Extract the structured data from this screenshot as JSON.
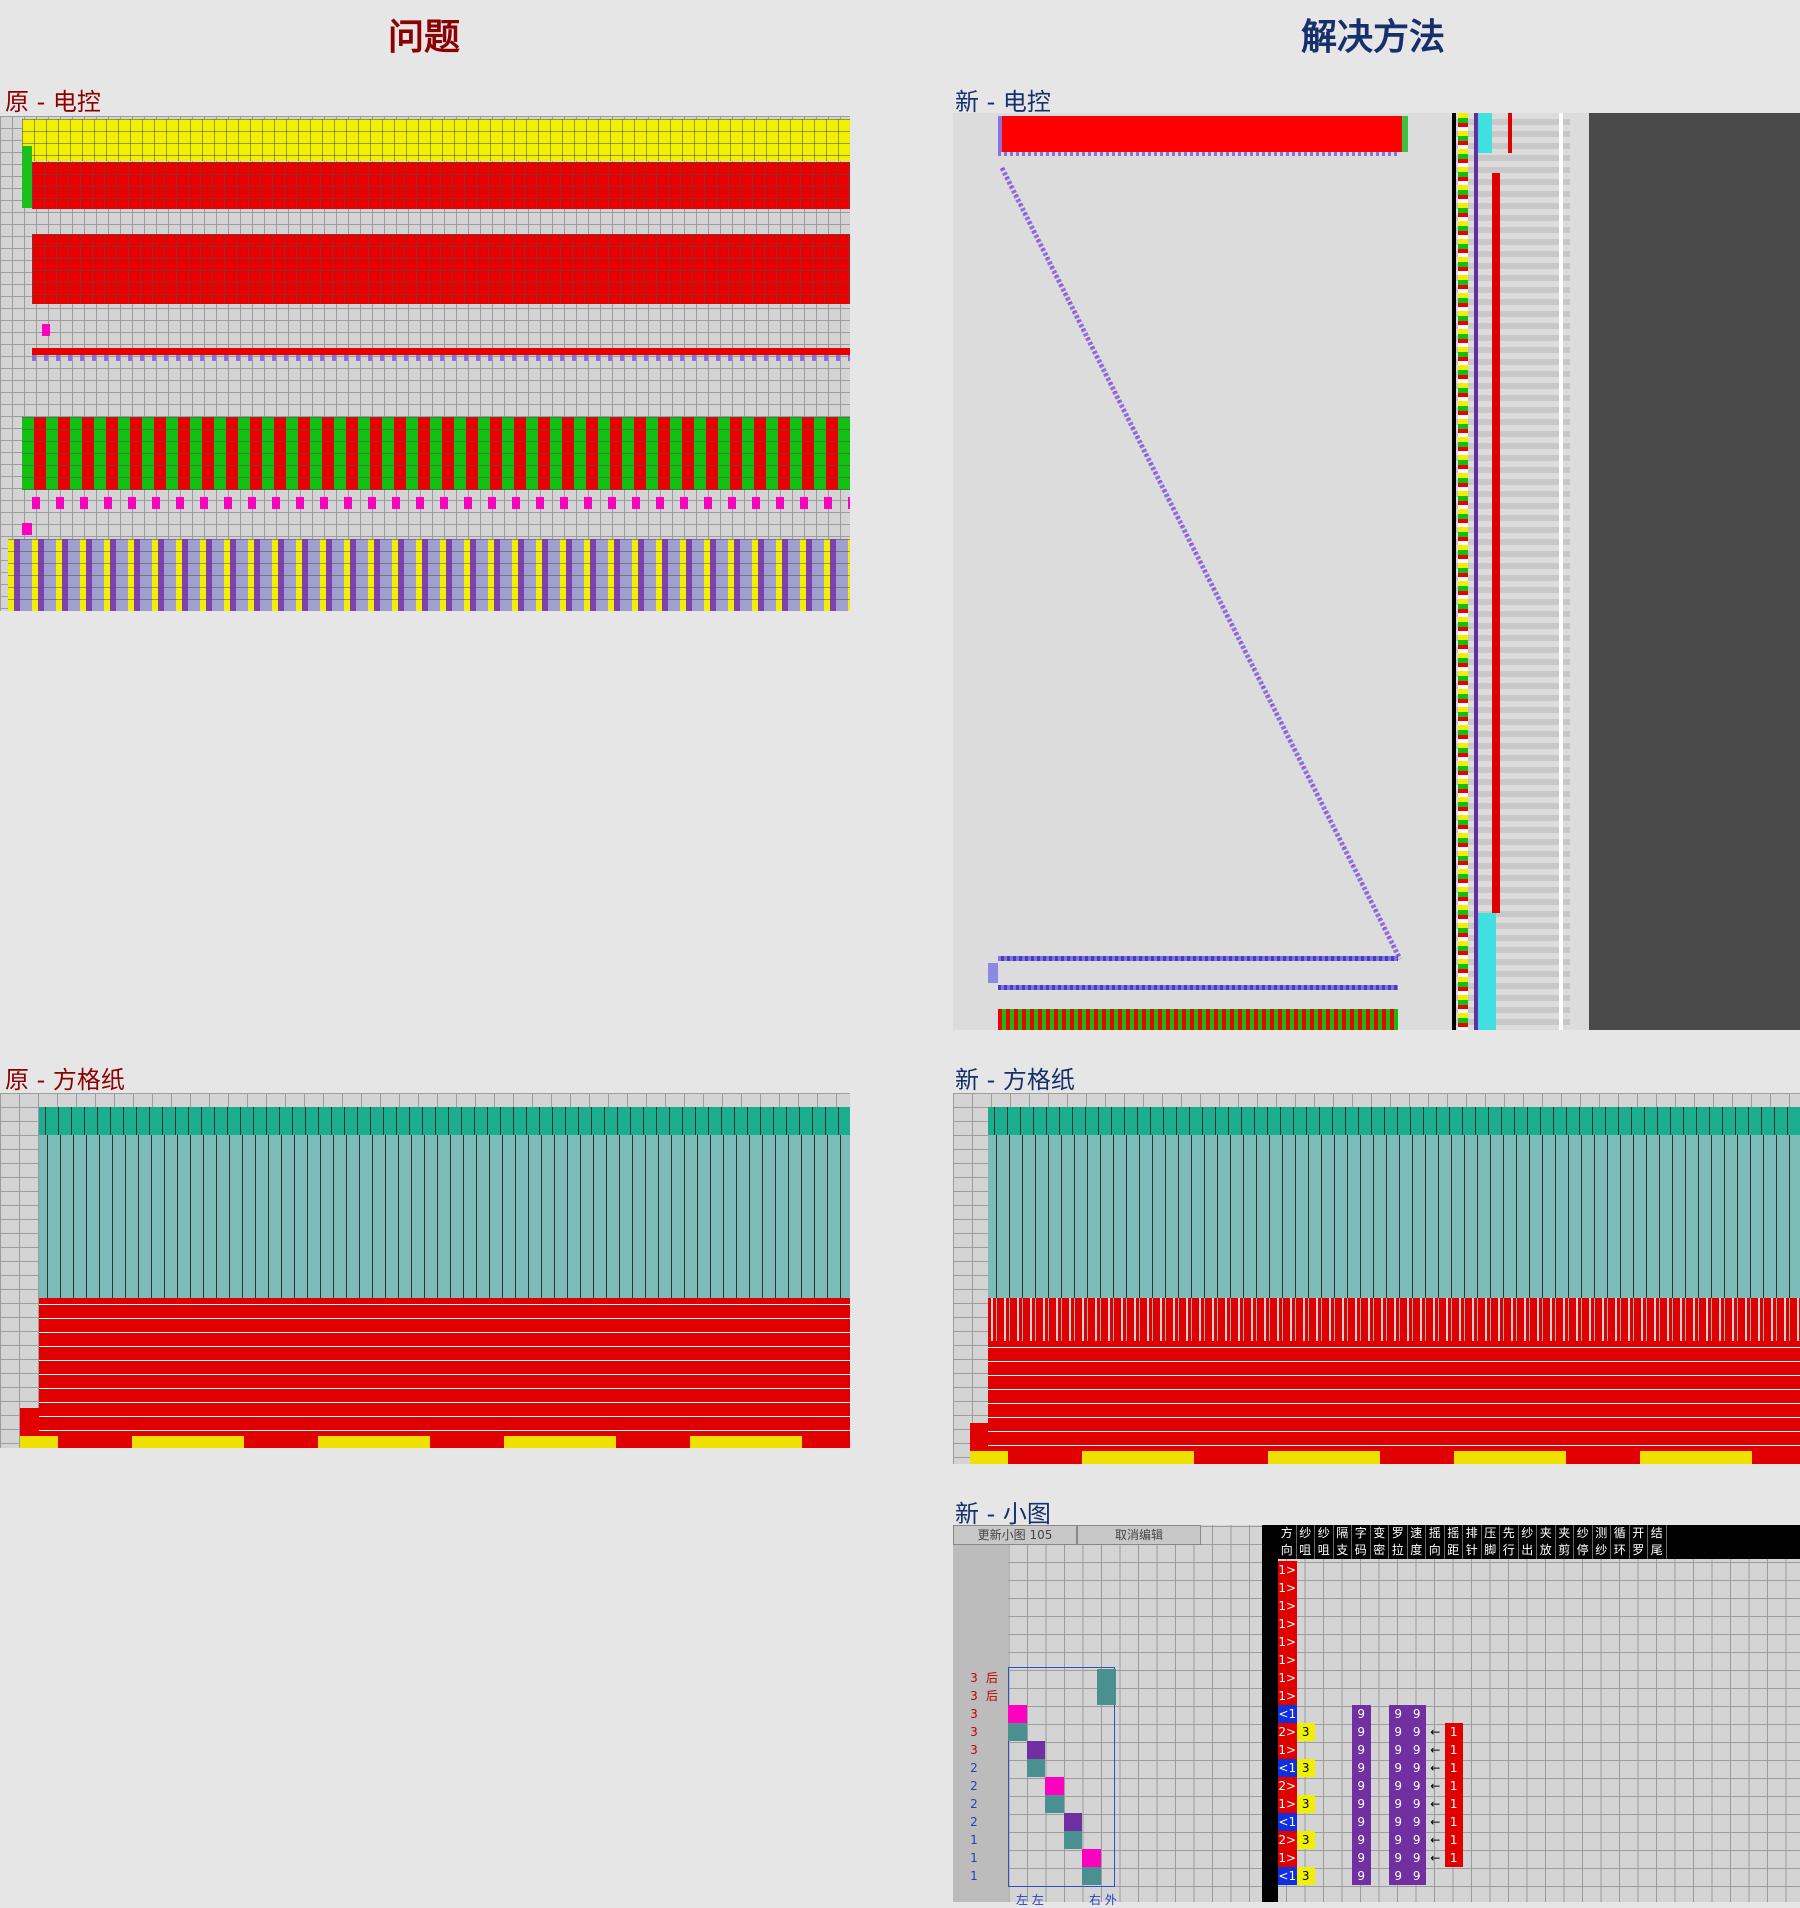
{
  "header": {
    "problem": "问题",
    "solution": "解决方法"
  },
  "panels": {
    "old_control": "原 - 电控",
    "new_control": "新 - 电控",
    "old_grid": "原 - 方格纸",
    "new_grid": "新 - 方格纸",
    "new_small": "新 - 小图"
  },
  "small_map": {
    "buttons": [
      "更新小图 105",
      "取消编辑"
    ],
    "header_top": [
      "方",
      "纱",
      "纱",
      "隔",
      "字",
      "变",
      "罗",
      "速",
      "摇",
      "摇",
      "排",
      "压",
      "先",
      "纱",
      "夹",
      "夹",
      "纱",
      "测",
      "循",
      "开",
      "结"
    ],
    "header_bottom": [
      "向",
      "咀",
      "咀",
      "支",
      "码",
      "密",
      "拉",
      "度",
      "向",
      "距",
      "针",
      "脚",
      "行",
      "出",
      "放",
      "剪",
      "停",
      "纱",
      "环",
      "罗",
      "尾"
    ],
    "rows": [
      {
        "dir": "1>"
      },
      {
        "dir": "1>"
      },
      {
        "dir": "1>"
      },
      {
        "dir": "1>"
      },
      {
        "dir": "1>"
      },
      {
        "dir": "1>"
      },
      {
        "dir": "1>"
      },
      {
        "dir": "1>"
      },
      {
        "dir": "<1",
        "stitch": "9",
        "density": "9",
        "speed": "9"
      },
      {
        "dir": "2>",
        "yarn": "3",
        "stitch": "9",
        "density": "9",
        "speed": "9",
        "arrow": "←",
        "swing": "1"
      },
      {
        "dir": "1>",
        "stitch": "9",
        "density": "9",
        "speed": "9",
        "arrow": "←",
        "swing": "1"
      },
      {
        "dir": "<1",
        "yarn": "3",
        "stitch": "9",
        "density": "9",
        "speed": "9",
        "arrow": "←",
        "swing": "1"
      },
      {
        "dir": "2>",
        "stitch": "9",
        "density": "9",
        "speed": "9",
        "arrow": "←",
        "swing": "1"
      },
      {
        "dir": "1>",
        "yarn": "3",
        "stitch": "9",
        "density": "9",
        "speed": "9",
        "arrow": "←",
        "swing": "1"
      },
      {
        "dir": "<1",
        "stitch": "9",
        "density": "9",
        "speed": "9",
        "arrow": "←",
        "swing": "1"
      },
      {
        "dir": "2>",
        "yarn": "3",
        "stitch": "9",
        "density": "9",
        "speed": "9",
        "arrow": "←",
        "swing": "1"
      },
      {
        "dir": "1>",
        "stitch": "9",
        "density": "9",
        "speed": "9",
        "arrow": "←",
        "swing": "1"
      },
      {
        "dir": "<1",
        "yarn": "3",
        "stitch": "9",
        "density": "9",
        "speed": "9"
      }
    ],
    "left_rows": [
      {
        "num": "3",
        "side": "后",
        "color": "#c00000"
      },
      {
        "num": "3",
        "side": "后",
        "color": "#c00000"
      },
      {
        "num": "3",
        "color": "#c00000"
      },
      {
        "num": "3",
        "color": "#c00000"
      },
      {
        "num": "3",
        "color": "#c00000"
      },
      {
        "num": "2",
        "color": "#2040c0"
      },
      {
        "num": "2",
        "color": "#2040c0"
      },
      {
        "num": "2",
        "color": "#2040c0"
      },
      {
        "num": "2",
        "color": "#2040c0"
      },
      {
        "num": "1",
        "color": "#2040c0"
      },
      {
        "num": "1",
        "color": "#2040c0"
      },
      {
        "num": "1",
        "color": "#2040c0"
      }
    ],
    "footer_left": "左 左",
    "footer_right": "右 外"
  }
}
